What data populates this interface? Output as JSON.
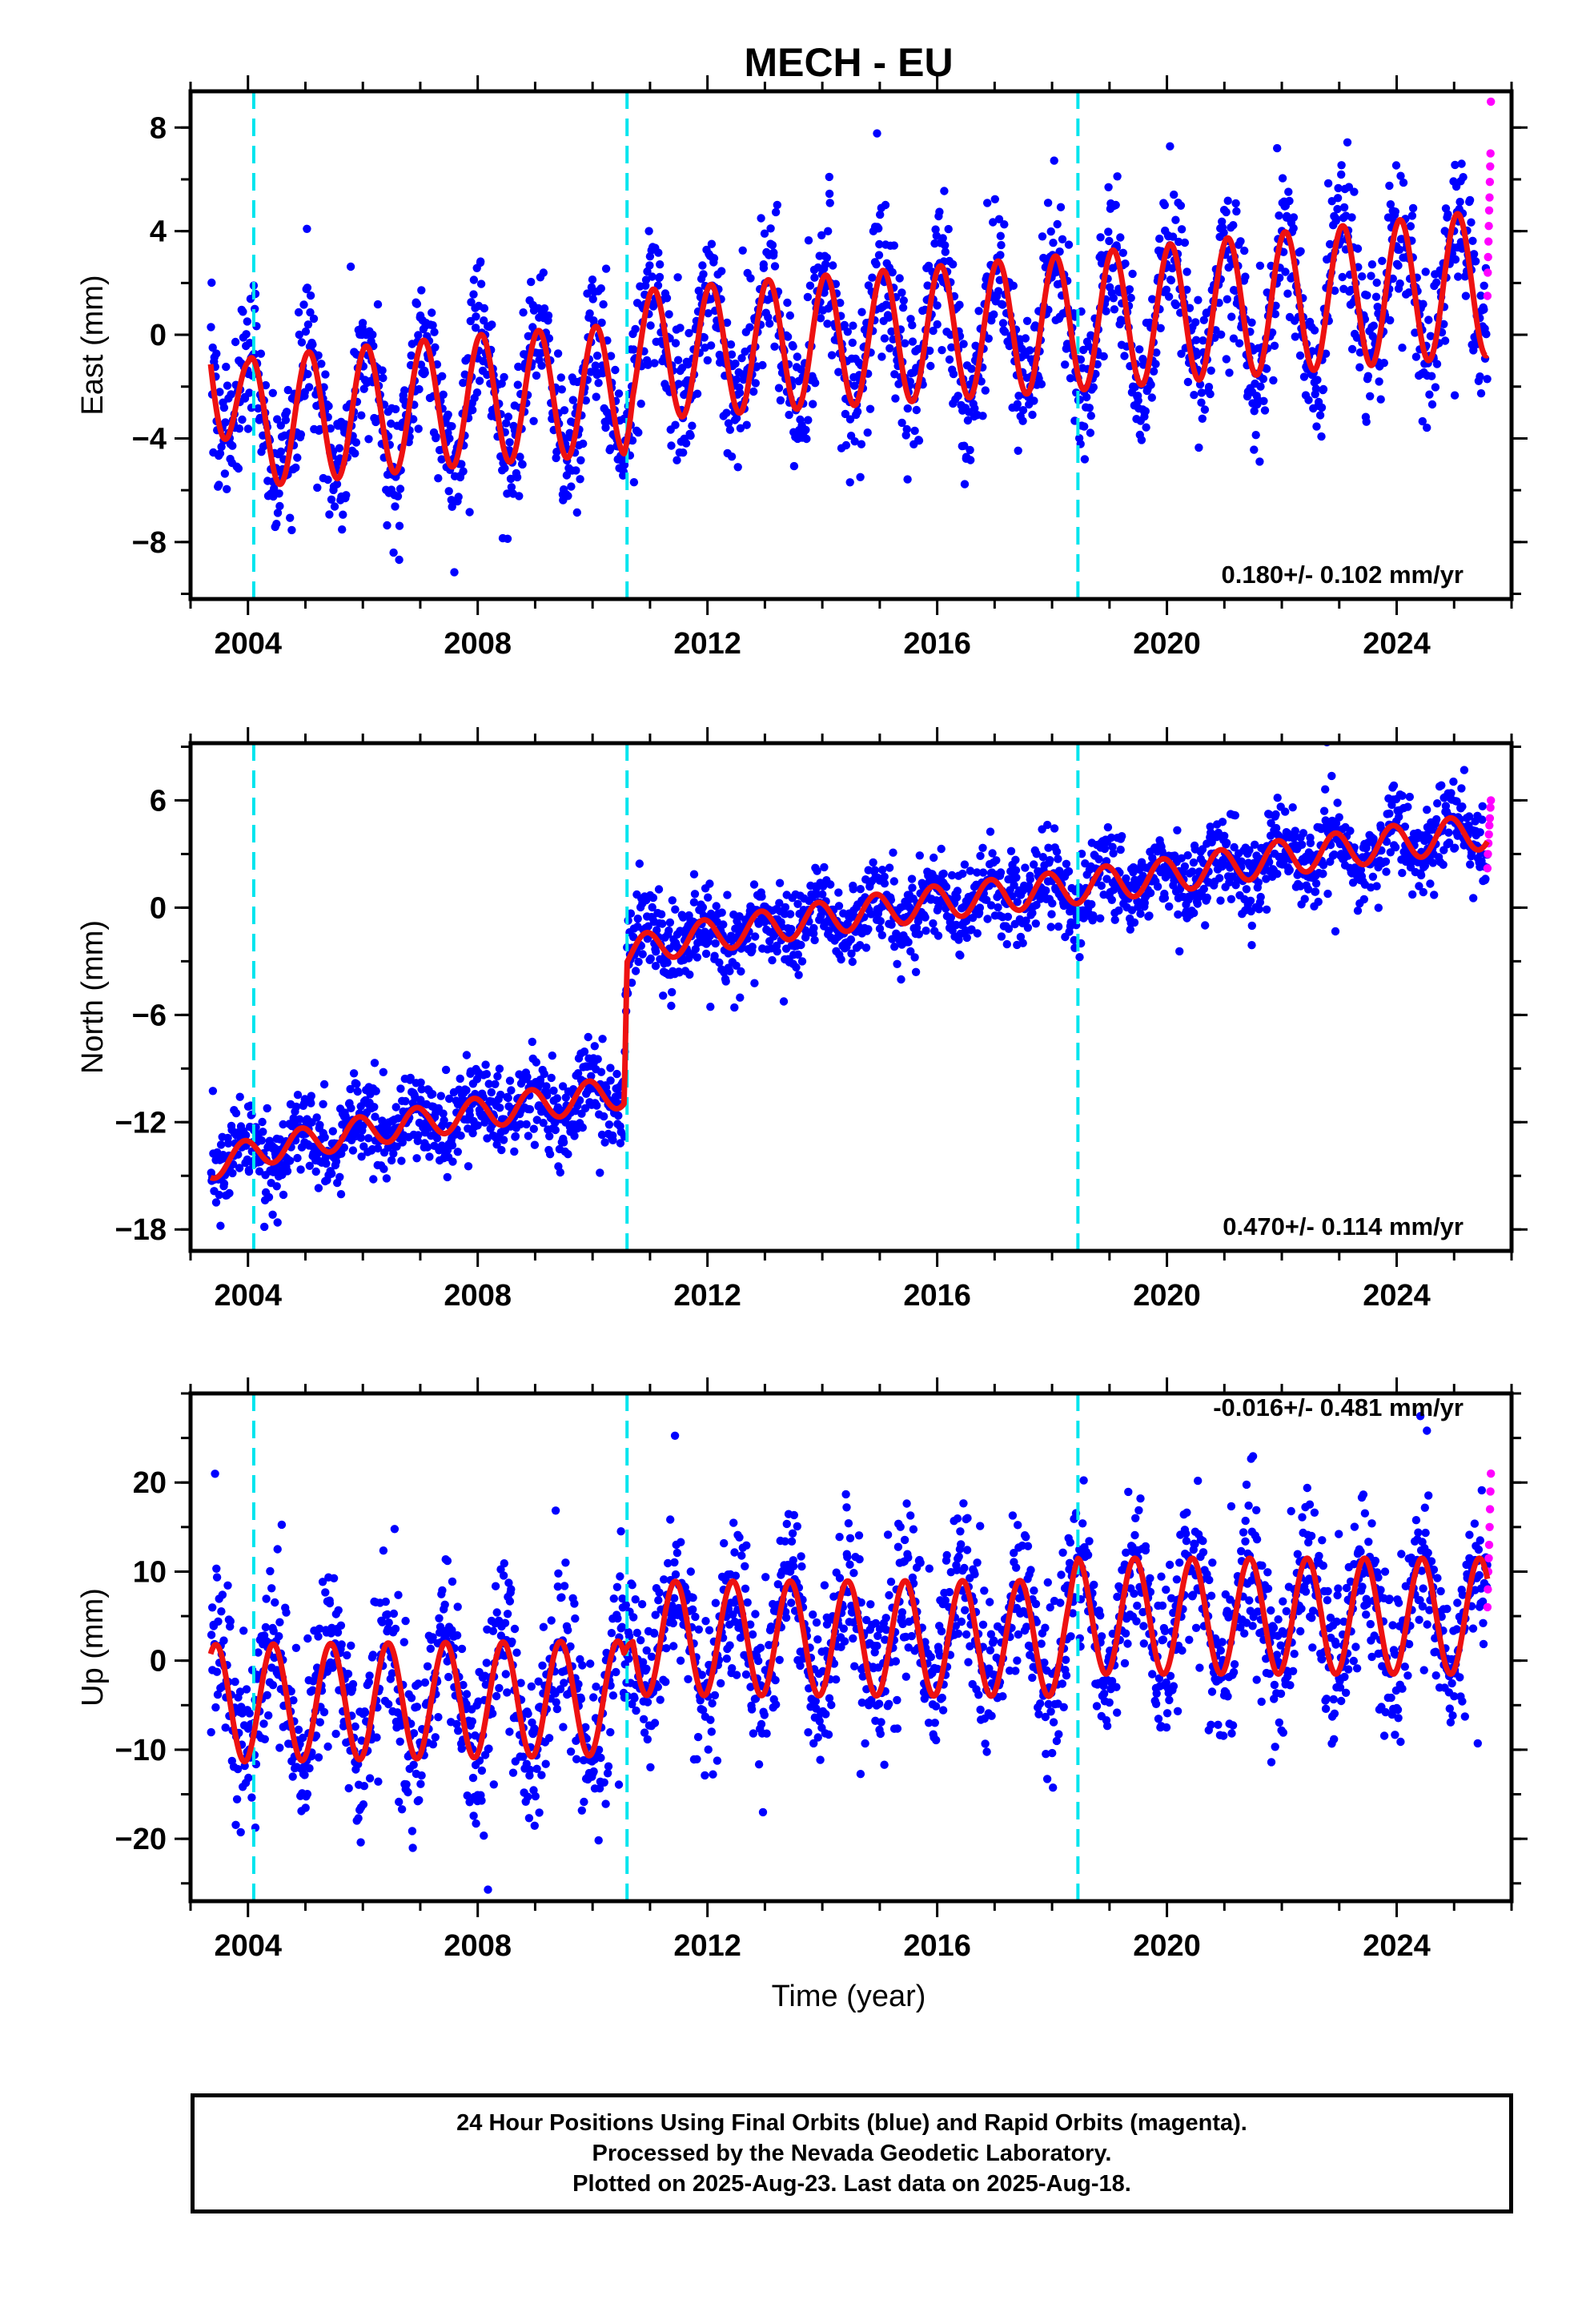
{
  "title": "MECH - EU",
  "colors": {
    "observations": "#0000ff",
    "rapid": "#ff00ff",
    "model": "#ee1111",
    "events": "#00e5ee",
    "frame": "#000000"
  },
  "xlabel": "Time (year)",
  "x_ticks": [
    "2004",
    "2008",
    "2012",
    "2016",
    "2020",
    "2024"
  ],
  "chart_data": [
    {
      "type": "scatter",
      "name": "east",
      "ylabel": "East (mm)",
      "rate_label": "0.180+/- 0.102 mm/yr",
      "xlim": [
        2003.0,
        2026.0
      ],
      "ylim": [
        -10.2,
        9.4
      ],
      "y_ticks": [
        8,
        4,
        0,
        -4,
        -8
      ],
      "y_tick_labels": [
        "8",
        "4",
        "0",
        "−4",
        "−8"
      ],
      "event_lines_x": [
        2004.1,
        2010.6,
        2018.45
      ],
      "final_orbit_range": [
        2003.35,
        2025.58
      ],
      "rapid_orbit_range": [
        2025.58,
        2025.64
      ],
      "rapid_y": [
        1.5,
        2.4,
        3.0,
        3.6,
        4.2,
        4.8,
        5.3,
        5.9,
        6.5,
        7.0,
        9.0
      ],
      "model": {
        "knots": [
          [
            2003.35,
            -0.5
          ],
          [
            2004.0,
            -3.4
          ],
          [
            2008.0,
            -2.5
          ],
          [
            2010.55,
            -2.1
          ],
          [
            2010.7,
            -0.8
          ],
          [
            2018.0,
            0.4
          ],
          [
            2025.6,
            2.0
          ]
        ],
        "annual_amplitude": [
          [
            2003.35,
            2.5
          ],
          [
            2011.0,
            2.5
          ],
          [
            2017.0,
            2.6
          ],
          [
            2025.6,
            2.8
          ]
        ],
        "phase": 1.2
      },
      "scatter_sd": 1.4
    },
    {
      "type": "scatter",
      "name": "north",
      "ylabel": "North (mm)",
      "rate_label": "0.470+/- 0.114 mm/yr",
      "xlim": [
        2003.0,
        2026.0
      ],
      "ylim": [
        -19.2,
        9.2
      ],
      "y_ticks": [
        6,
        0,
        -6,
        -12,
        -18
      ],
      "y_tick_labels": [
        "6",
        "0",
        "−6",
        "−12",
        "−18"
      ],
      "event_lines_x": [
        2004.1,
        2010.6,
        2018.45
      ],
      "final_orbit_range": [
        2003.35,
        2025.58
      ],
      "rapid_orbit_range": [
        2025.58,
        2025.64
      ],
      "rapid_y": [
        2.2,
        3.0,
        3.6,
        4.1,
        4.6,
        5.0,
        5.6,
        6.0
      ],
      "model": {
        "knots": [
          [
            2003.35,
            -14.4
          ],
          [
            2004.2,
            -13.6
          ],
          [
            2006.0,
            -12.5
          ],
          [
            2008.0,
            -11.5
          ],
          [
            2010.55,
            -10.3
          ],
          [
            2010.6,
            -2.6
          ],
          [
            2011.5,
            -1.8
          ],
          [
            2014.0,
            -0.6
          ],
          [
            2016.0,
            0.3
          ],
          [
            2018.0,
            1.0
          ],
          [
            2020.0,
            1.8
          ],
          [
            2022.0,
            2.8
          ],
          [
            2025.6,
            4.3
          ]
        ],
        "annual_amplitude": [
          [
            2003.35,
            0.8
          ],
          [
            2011.0,
            0.9
          ],
          [
            2025.6,
            1.0
          ]
        ],
        "phase": 2.0
      },
      "scatter_sd": 1.2
    },
    {
      "type": "scatter",
      "name": "up",
      "ylabel": "Up (mm)",
      "rate_label": "-0.016+/- 0.481 mm/yr",
      "xlim": [
        2003.0,
        2026.0
      ],
      "ylim": [
        -27.0,
        30.0
      ],
      "y_ticks": [
        20,
        10,
        0,
        -10,
        -20
      ],
      "y_tick_labels": [
        "20",
        "10",
        "0",
        "−10",
        "−20"
      ],
      "event_lines_x": [
        2004.1,
        2010.6,
        2018.45
      ],
      "final_orbit_range": [
        2003.35,
        2025.58
      ],
      "rapid_orbit_range": [
        2025.58,
        2025.64
      ],
      "rapid_y": [
        6.0,
        8.0,
        10.0,
        11.5,
        13.0,
        15.0,
        17.0,
        19.0,
        21.0
      ],
      "model": {
        "knots": [
          [
            2003.35,
            -4.8
          ],
          [
            2010.55,
            -4.2
          ],
          [
            2010.7,
            2.5
          ],
          [
            2018.3,
            2.5
          ],
          [
            2018.45,
            5.0
          ],
          [
            2025.6,
            5.0
          ]
        ],
        "annual_amplitude": [
          [
            2003.35,
            6.6
          ],
          [
            2011.0,
            6.4
          ],
          [
            2018.0,
            6.5
          ],
          [
            2025.6,
            6.5
          ]
        ],
        "phase": -1.2
      },
      "scatter_sd": 4.6
    }
  ],
  "footer": {
    "line1": "24 Hour Positions Using Final Orbits (blue) and Rapid Orbits (magenta).",
    "line2": "Processed by the Nevada Geodetic Laboratory.",
    "line3": "Plotted on 2025-Aug-23. Last data on 2025-Aug-18."
  }
}
